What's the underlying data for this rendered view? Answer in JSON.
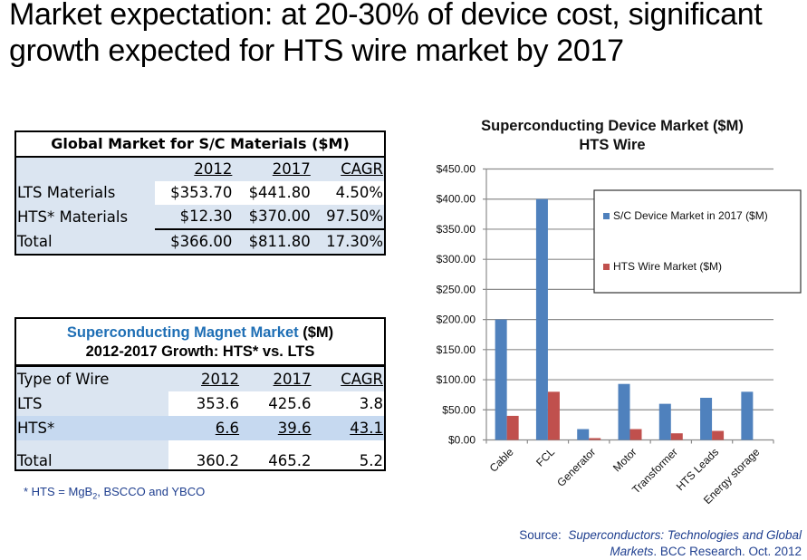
{
  "title": {
    "line1": "Market expectation:  at 20-30% of device cost, significant",
    "line2": "growth expected for HTS wire market by 2017"
  },
  "materials_table": {
    "header": "Global Market for S/C Materials  ($M)",
    "columns": [
      "",
      "2012",
      "2017",
      "CAGR"
    ],
    "rows": [
      [
        "LTS Materials",
        "$353.70",
        "$441.80",
        "4.50%"
      ],
      [
        "HTS* Materials",
        "$12.30",
        "$370.00",
        "97.50%"
      ],
      [
        "Total",
        "$366.00",
        "$811.80",
        "17.30%"
      ]
    ]
  },
  "magnet_table": {
    "header_line1_blue": "Superconducting Magnet Market",
    "header_line1_black": " ($M)",
    "header_line2": "2012-2017 Growth:  HTS* vs. LTS",
    "columns": [
      "Type of Wire",
      "2012",
      "2017",
      "CAGR"
    ],
    "rows": [
      [
        "LTS",
        "353.6",
        "425.6",
        "3.8"
      ],
      [
        "HTS*",
        "6.6",
        "39.6",
        "43.1"
      ],
      [
        "Total",
        "360.2",
        "465.2",
        "5.2"
      ]
    ]
  },
  "footnote": {
    "prefix": "* HTS = MgB",
    "sub": "2",
    "suffix": ", BSCCO and YBCO"
  },
  "source": {
    "label": "Source:  ",
    "italic1": "Superconductors: Technologies and Global",
    "italic2": "Markets",
    "rest": ". BCC Research. Oct. 2012"
  },
  "colors": {
    "series1": "#4f81bd",
    "series2": "#c0504d",
    "table_blue": "#dbe5f1",
    "title_blue": "#1f6fb5"
  },
  "chart_data": {
    "type": "bar",
    "title": "Superconducting Device Market ($M)",
    "subtitle": "HTS Wire",
    "xlabel": "",
    "ylabel": "",
    "categories": [
      "Cable",
      "FCL",
      "Generator",
      "Motor",
      "Transformer",
      "HTS Leads",
      "Energy storage"
    ],
    "series": [
      {
        "name": "S/C Device Market in 2017  ($M)",
        "values": [
          200,
          400,
          18,
          93,
          60,
          70,
          80
        ]
      },
      {
        "name": "HTS Wire Market ($M)",
        "values": [
          40,
          80,
          3,
          18,
          11,
          15,
          0
        ]
      }
    ],
    "ylim": [
      0,
      450
    ],
    "yticks": [
      "$0.00",
      "$50.00",
      "$100.00",
      "$150.00",
      "$200.00",
      "$250.00",
      "$300.00",
      "$350.00",
      "$400.00",
      "$450.00"
    ],
    "grid": true,
    "legend": "top-right"
  }
}
